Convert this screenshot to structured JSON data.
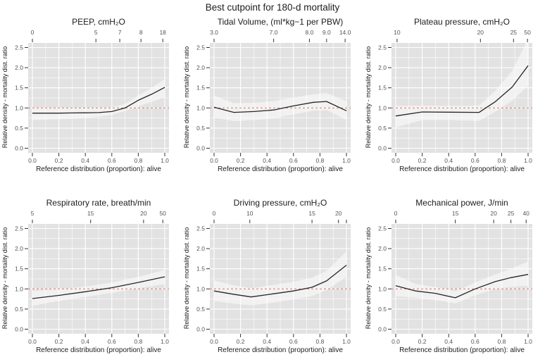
{
  "figure_title": "Best cutpoint for 180-d mortality",
  "style": {
    "panel_bg": "#e2e2e2",
    "grid_color": "#ffffff",
    "band_color": "rgba(255,255,255,0.5)",
    "line_color": "#262626",
    "ref_line_color": "#dd7f7b",
    "tick_color": "#333333",
    "tick_label_color": "#555555",
    "axis_label_color": "#1c1c1c"
  },
  "axes": {
    "y_ticks": [
      "0.0",
      "0.5",
      "1.0",
      "1.5",
      "2.0",
      "2.5"
    ],
    "x_ticks": [
      "0.0",
      "0.2",
      "0.4",
      "0.6",
      "0.8",
      "1.0"
    ],
    "y_minor": [
      0.25,
      0.75,
      1.25,
      1.75,
      2.25
    ],
    "x_minor": [
      0.1,
      0.3,
      0.5,
      0.7,
      0.9
    ],
    "y_range": [
      0,
      2.5
    ],
    "x_range": [
      0,
      1
    ],
    "ref_y": 1.0,
    "grid": true,
    "legend": "none"
  },
  "chart_data": [
    {
      "type": "line",
      "title": "PEEP, cmH₂O",
      "xlabel": "Reference distribution (proportion): alive",
      "ylabel": "Relative density - mortality dist. ratio",
      "top_axis": {
        "ticks": [
          {
            "label": "0",
            "pos": 0.0
          },
          {
            "label": "5",
            "pos": 0.48
          },
          {
            "label": "7",
            "pos": 0.66
          },
          {
            "label": "8",
            "pos": 0.82
          },
          {
            "label": "18",
            "pos": 0.985
          }
        ]
      },
      "line": [
        [
          0,
          0.87
        ],
        [
          0.1,
          0.87
        ],
        [
          0.2,
          0.87
        ],
        [
          0.3,
          0.875
        ],
        [
          0.4,
          0.88
        ],
        [
          0.5,
          0.885
        ],
        [
          0.6,
          0.91
        ],
        [
          0.7,
          1.0
        ],
        [
          0.8,
          1.19
        ],
        [
          0.9,
          1.34
        ],
        [
          1,
          1.51
        ]
      ],
      "band": [
        [
          0,
          0.7,
          1.0
        ],
        [
          0.1,
          0.71,
          0.99
        ],
        [
          0.2,
          0.72,
          0.99
        ],
        [
          0.3,
          0.73,
          0.99
        ],
        [
          0.4,
          0.75,
          0.99
        ],
        [
          0.5,
          0.78,
          1.0
        ],
        [
          0.6,
          0.83,
          1.02
        ],
        [
          0.7,
          0.92,
          1.1
        ],
        [
          0.8,
          1.04,
          1.31
        ],
        [
          0.9,
          1.15,
          1.5
        ],
        [
          1,
          1.26,
          1.72
        ]
      ]
    },
    {
      "type": "line",
      "title": "Tidal Volume, (ml*kg−1 per PBW)",
      "xlabel": "Reference distribution (proportion): alive",
      "ylabel": "Relative density - mortality dist. ratio",
      "top_axis": {
        "ticks": [
          {
            "label": "3.0",
            "pos": 0.0
          },
          {
            "label": "7.0",
            "pos": 0.45
          },
          {
            "label": "8.0",
            "pos": 0.72
          },
          {
            "label": "9.0",
            "pos": 0.85
          },
          {
            "label": "14.0",
            "pos": 0.99
          }
        ]
      },
      "line": [
        [
          0,
          1.02
        ],
        [
          0.15,
          0.89
        ],
        [
          0.3,
          0.91
        ],
        [
          0.45,
          0.95
        ],
        [
          0.6,
          1.05
        ],
        [
          0.75,
          1.14
        ],
        [
          0.85,
          1.16
        ],
        [
          1,
          0.93
        ]
      ],
      "band": [
        [
          0,
          0.77,
          1.31
        ],
        [
          0.15,
          0.67,
          1.12
        ],
        [
          0.3,
          0.7,
          1.13
        ],
        [
          0.45,
          0.74,
          1.17
        ],
        [
          0.6,
          0.84,
          1.26
        ],
        [
          0.75,
          0.93,
          1.34
        ],
        [
          0.85,
          0.95,
          1.37
        ],
        [
          1,
          0.7,
          1.17
        ]
      ]
    },
    {
      "type": "line",
      "title": "Plateau pressure, cmH₂O",
      "xlabel": "Reference distribution (proportion): alive",
      "ylabel": "Relative density - mortality dist. ratio",
      "top_axis": {
        "ticks": [
          {
            "label": "10",
            "pos": 0.01
          },
          {
            "label": "20",
            "pos": 0.64
          },
          {
            "label": "25",
            "pos": 0.89
          },
          {
            "label": "50",
            "pos": 0.995
          }
        ]
      },
      "line": [
        [
          0,
          0.8
        ],
        [
          0.2,
          0.9
        ],
        [
          0.4,
          0.895
        ],
        [
          0.63,
          0.89
        ],
        [
          0.75,
          1.15
        ],
        [
          0.88,
          1.52
        ],
        [
          1,
          2.05
        ]
      ],
      "band": [
        [
          0,
          0.52,
          1.05
        ],
        [
          0.2,
          0.7,
          1.06
        ],
        [
          0.4,
          0.7,
          1.05
        ],
        [
          0.63,
          0.68,
          1.06
        ],
        [
          0.75,
          0.9,
          1.42
        ],
        [
          0.88,
          1.18,
          1.92
        ],
        [
          1,
          1.55,
          2.72
        ]
      ]
    },
    {
      "type": "line",
      "title": "Respiratory rate, breath/min",
      "xlabel": "Reference distribution (proportion): alive",
      "ylabel": "Relative density - mortality dist. ratio",
      "top_axis": {
        "ticks": [
          {
            "label": "5",
            "pos": 0.0
          },
          {
            "label": "15",
            "pos": 0.44
          },
          {
            "label": "20",
            "pos": 0.84
          },
          {
            "label": "50",
            "pos": 0.985
          }
        ]
      },
      "line": [
        [
          0,
          0.76
        ],
        [
          0.2,
          0.84
        ],
        [
          0.4,
          0.93
        ],
        [
          0.6,
          1.03
        ],
        [
          0.8,
          1.16
        ],
        [
          1,
          1.3
        ]
      ],
      "band": [
        [
          0,
          0.58,
          0.95
        ],
        [
          0.2,
          0.7,
          0.99
        ],
        [
          0.4,
          0.8,
          1.06
        ],
        [
          0.6,
          0.9,
          1.16
        ],
        [
          0.8,
          1.02,
          1.3
        ],
        [
          1,
          1.12,
          1.47
        ]
      ]
    },
    {
      "type": "line",
      "title": "Driving pressure, cmH₂O",
      "xlabel": "Reference distribution (proportion): alive",
      "ylabel": "Relative density - mortality dist. ratio",
      "top_axis": {
        "ticks": [
          {
            "label": "0",
            "pos": 0.0
          },
          {
            "label": "10",
            "pos": 0.27
          },
          {
            "label": "15",
            "pos": 0.74
          },
          {
            "label": "20",
            "pos": 0.94
          },
          {
            "label": "",
            "pos": 1.0
          }
        ]
      },
      "line": [
        [
          0,
          0.95
        ],
        [
          0.14,
          0.87
        ],
        [
          0.28,
          0.8
        ],
        [
          0.45,
          0.88
        ],
        [
          0.6,
          0.95
        ],
        [
          0.74,
          1.04
        ],
        [
          0.85,
          1.2
        ],
        [
          1,
          1.59
        ]
      ],
      "band": [
        [
          0,
          0.7,
          1.21
        ],
        [
          0.14,
          0.64,
          1.1
        ],
        [
          0.28,
          0.59,
          1.02
        ],
        [
          0.45,
          0.66,
          1.1
        ],
        [
          0.6,
          0.74,
          1.18
        ],
        [
          0.74,
          0.82,
          1.28
        ],
        [
          0.85,
          0.97,
          1.45
        ],
        [
          1,
          1.3,
          1.93
        ]
      ]
    },
    {
      "type": "line",
      "title": "Mechanical power, J/min",
      "xlabel": "Reference distribution (proportion): alive",
      "ylabel": "Relative density - mortality dist. ratio",
      "top_axis": {
        "ticks": [
          {
            "label": "0",
            "pos": 0.0
          },
          {
            "label": "15",
            "pos": 0.45
          },
          {
            "label": "20",
            "pos": 0.74
          },
          {
            "label": "25",
            "pos": 0.87
          },
          {
            "label": "40",
            "pos": 0.985
          }
        ]
      },
      "line": [
        [
          0,
          1.08
        ],
        [
          0.15,
          0.95
        ],
        [
          0.3,
          0.89
        ],
        [
          0.45,
          0.78
        ],
        [
          0.6,
          1.0
        ],
        [
          0.75,
          1.18
        ],
        [
          0.87,
          1.28
        ],
        [
          1,
          1.36
        ]
      ],
      "band": [
        [
          0,
          0.82,
          1.35
        ],
        [
          0.15,
          0.78,
          1.12
        ],
        [
          0.3,
          0.72,
          1.05
        ],
        [
          0.45,
          0.64,
          0.94
        ],
        [
          0.6,
          0.84,
          1.16
        ],
        [
          0.75,
          1.0,
          1.36
        ],
        [
          0.87,
          1.05,
          1.5
        ],
        [
          1,
          1.08,
          1.68
        ]
      ]
    }
  ]
}
